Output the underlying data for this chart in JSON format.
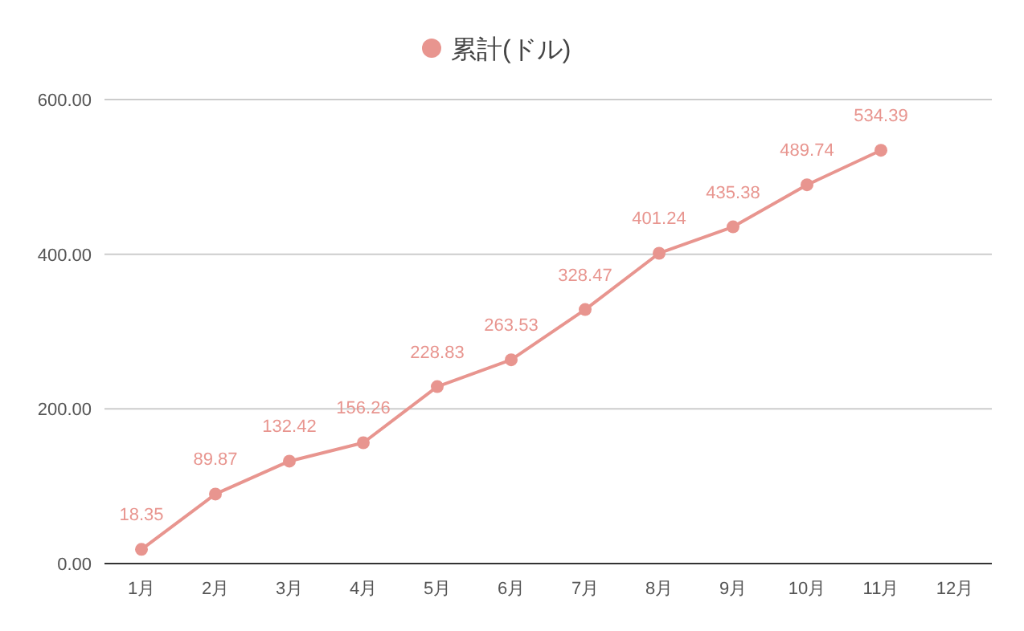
{
  "chart_data": {
    "type": "line",
    "categories": [
      "1月",
      "2月",
      "3月",
      "4月",
      "5月",
      "6月",
      "7月",
      "8月",
      "9月",
      "10月",
      "11月",
      "12月"
    ],
    "series": [
      {
        "name": "累計(ドル)",
        "color": "#e8958f",
        "values": [
          18.35,
          89.87,
          132.42,
          156.26,
          228.83,
          263.53,
          328.47,
          401.24,
          435.38,
          489.74,
          534.39,
          null
        ]
      }
    ],
    "ylim": [
      0,
      600
    ],
    "yticks": [
      {
        "value": 0,
        "label": "0.00"
      },
      {
        "value": 200,
        "label": "200.00"
      },
      {
        "value": 400,
        "label": "400.00"
      },
      {
        "value": 600,
        "label": "600.00"
      }
    ],
    "grid": "y",
    "legend": "top",
    "marker": "circle",
    "line_style": "solid",
    "data_labels": true
  }
}
